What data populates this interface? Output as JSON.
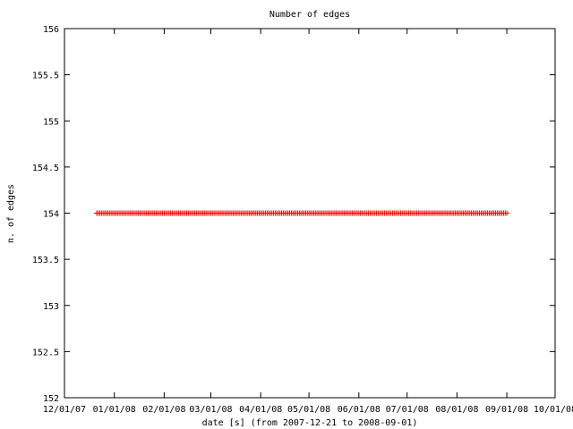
{
  "chart_data": {
    "type": "scatter",
    "title": "Number of edges",
    "xlabel": "date [s] (from 2007-12-21 to 2008-09-01)",
    "ylabel": "n. of edges",
    "xlim": [
      "2007-12-01",
      "2008-10-01"
    ],
    "ylim": [
      152,
      156
    ],
    "x_ticks": [
      "12/01/07",
      "01/01/08",
      "02/01/08",
      "03/01/08",
      "04/01/08",
      "05/01/08",
      "06/01/08",
      "07/01/08",
      "08/01/08",
      "09/01/08",
      "10/01/08"
    ],
    "x_tick_dates": [
      "2007-12-01",
      "2008-01-01",
      "2008-02-01",
      "2008-03-01",
      "2008-04-01",
      "2008-05-01",
      "2008-06-01",
      "2008-07-01",
      "2008-08-01",
      "2008-09-01",
      "2008-10-01"
    ],
    "y_ticks": [
      "152",
      "152.5",
      "153",
      "153.5",
      "154",
      "154.5",
      "155",
      "155.5",
      "156"
    ],
    "y_tick_values": [
      152,
      152.5,
      153,
      153.5,
      154,
      154.5,
      155,
      155.5,
      156
    ],
    "grid": false,
    "marker": "+",
    "series": [
      {
        "color": "#ff0000",
        "x_start": "2007-12-21",
        "x_end": "2008-09-01",
        "y": 154
      }
    ]
  }
}
